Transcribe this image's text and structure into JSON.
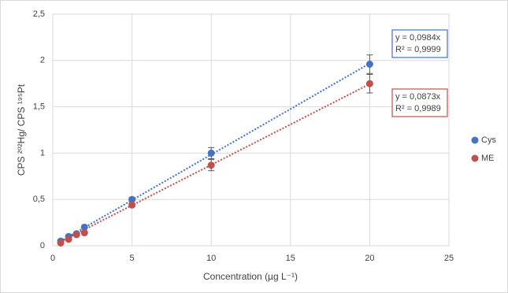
{
  "chart_data": {
    "type": "scatter",
    "xlabel": "Concentration (µg L⁻¹)",
    "ylabel": "CPS ²⁰²Hg/ CPS ¹⁹⁵Pt",
    "xlim": [
      0,
      25
    ],
    "xticks": [
      0,
      5,
      10,
      15,
      20,
      25
    ],
    "ylim": [
      0,
      2.5
    ],
    "yticks": [
      0,
      {
        "value": 0.5,
        "label": "0,5"
      },
      1,
      {
        "value": 1.5,
        "label": "1,5"
      },
      2,
      {
        "value": 2.5,
        "label": "2,5"
      }
    ],
    "grid": true,
    "legend": "right",
    "x": [
      0.5,
      1,
      1.5,
      2,
      5,
      10,
      20
    ],
    "series": [
      {
        "name": "Cys",
        "color": "#4472c4",
        "values": [
          0.05,
          0.1,
          0.13,
          0.2,
          0.5,
          1.0,
          1.96
        ],
        "errors": [
          0.01,
          0.01,
          0.01,
          0.01,
          0.02,
          0.06,
          0.1
        ],
        "trendline": {
          "slope": 0.0984,
          "equation": "y = 0,0984x",
          "r2": "R² = 0,9999"
        }
      },
      {
        "name": "ME",
        "color": "#c0504d",
        "values": [
          0.03,
          0.07,
          0.12,
          0.14,
          0.44,
          0.87,
          1.75
        ],
        "errors": [
          0.01,
          0.01,
          0.01,
          0.01,
          0.02,
          0.06,
          0.1
        ],
        "trendline": {
          "slope": 0.0873,
          "equation": "y = 0,0873x",
          "r2": "R² = 0,9989"
        }
      }
    ]
  }
}
